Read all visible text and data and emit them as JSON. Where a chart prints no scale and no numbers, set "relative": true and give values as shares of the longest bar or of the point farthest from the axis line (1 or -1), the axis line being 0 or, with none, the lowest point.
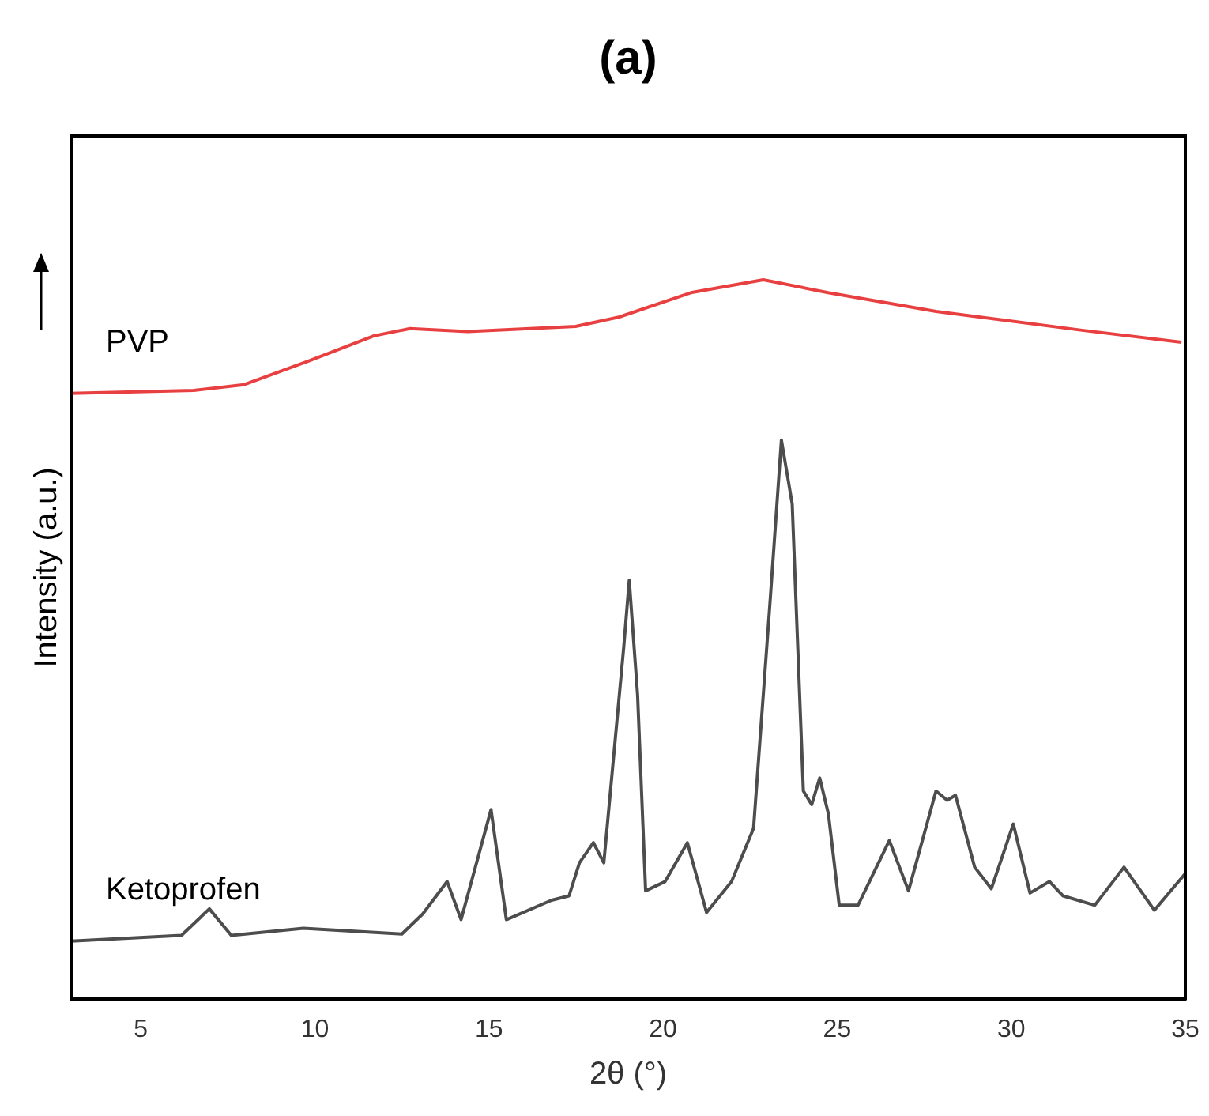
{
  "chart_data": {
    "type": "line",
    "title": "(a)",
    "xlabel": "2θ (°)",
    "ylabel": "Intensity (a.u.)",
    "relative": true,
    "xlim": [
      3,
      35
    ],
    "xticks": [
      5,
      10,
      15,
      20,
      25,
      30,
      35
    ],
    "grid": false,
    "legend": false,
    "marker": "none",
    "line_style": "solid",
    "series": [
      {
        "name": "PVP",
        "color": "#e84040",
        "x": [
          3,
          6.52,
          7.97,
          9.83,
          11.7,
          12.73,
          14.39,
          17.49,
          18.73,
          20.8,
          22.88,
          24.74,
          27.84,
          31.99,
          34.89
        ],
        "values": [
          0.842,
          0.846,
          0.854,
          0.887,
          0.922,
          0.932,
          0.928,
          0.935,
          0.948,
          0.982,
          1.0,
          0.982,
          0.956,
          0.93,
          0.913
        ]
      },
      {
        "name": "Ketoprofen",
        "color": "#4d4d4d",
        "x": [
          3,
          6.17,
          6.97,
          7.6,
          9.67,
          12.5,
          13.1,
          13.8,
          14.2,
          15.06,
          15.5,
          16.8,
          17.3,
          17.6,
          18.0,
          18.3,
          18.87,
          19.03,
          19.27,
          19.5,
          20.06,
          20.7,
          21.25,
          21.97,
          22.6,
          23.08,
          23.4,
          23.71,
          24.03,
          24.27,
          24.5,
          24.75,
          25.06,
          25.6,
          26.5,
          27.05,
          27.84,
          28.16,
          28.4,
          28.95,
          29.43,
          30.06,
          30.54,
          31.1,
          31.49,
          32.4,
          33.24,
          34.11,
          34.98
        ],
        "values": [
          0.08,
          0.088,
          0.125,
          0.088,
          0.098,
          0.09,
          0.118,
          0.163,
          0.11,
          0.263,
          0.11,
          0.137,
          0.143,
          0.189,
          0.217,
          0.189,
          0.488,
          0.582,
          0.422,
          0.15,
          0.163,
          0.217,
          0.12,
          0.163,
          0.237,
          0.556,
          0.777,
          0.688,
          0.289,
          0.27,
          0.307,
          0.257,
          0.13,
          0.13,
          0.22,
          0.15,
          0.289,
          0.276,
          0.283,
          0.183,
          0.153,
          0.243,
          0.147,
          0.163,
          0.143,
          0.13,
          0.183,
          0.123,
          0.173
        ]
      }
    ]
  }
}
